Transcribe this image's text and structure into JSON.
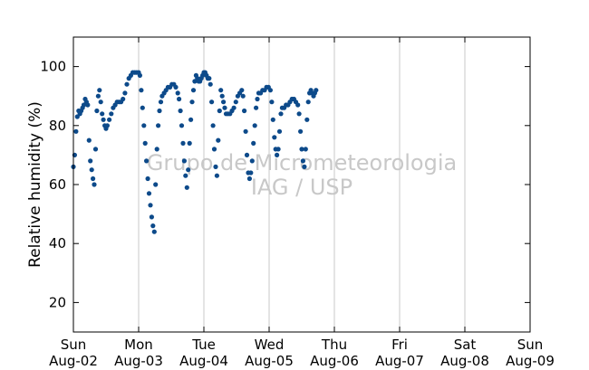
{
  "chart_data": {
    "type": "scatter",
    "title": "",
    "xlabel": "",
    "ylabel": "Relative humidity (%)",
    "watermark": [
      "Grupo de Micrometeorologia",
      "IAG / USP"
    ],
    "xlim": [
      "Aug-02",
      "Aug-09"
    ],
    "ylim": [
      10,
      110
    ],
    "yticks": [
      20,
      40,
      60,
      80,
      100
    ],
    "xticks": [
      {
        "day": "Sun",
        "date": "Aug-02"
      },
      {
        "day": "Mon",
        "date": "Aug-03"
      },
      {
        "day": "Tue",
        "date": "Aug-04"
      },
      {
        "day": "Wed",
        "date": "Aug-05"
      },
      {
        "day": "Thu",
        "date": "Aug-06"
      },
      {
        "day": "Fri",
        "date": "Aug-07"
      },
      {
        "day": "Sat",
        "date": "Aug-08"
      },
      {
        "day": "Sun",
        "date": "Aug-09"
      }
    ],
    "grid": "vertical",
    "marker_color": "#0d4a8a",
    "series": [
      {
        "x_unit": "days since Aug-02 00:00",
        "points": [
          [
            0.0,
            66
          ],
          [
            0.02,
            70
          ],
          [
            0.04,
            78
          ],
          [
            0.06,
            83
          ],
          [
            0.08,
            85
          ],
          [
            0.1,
            84
          ],
          [
            0.12,
            85
          ],
          [
            0.14,
            86
          ],
          [
            0.16,
            87
          ],
          [
            0.18,
            89
          ],
          [
            0.2,
            88
          ],
          [
            0.22,
            87
          ],
          [
            0.24,
            75
          ],
          [
            0.26,
            68
          ],
          [
            0.28,
            65
          ],
          [
            0.3,
            62
          ],
          [
            0.32,
            60
          ],
          [
            0.34,
            72
          ],
          [
            0.36,
            85
          ],
          [
            0.38,
            90
          ],
          [
            0.4,
            92
          ],
          [
            0.42,
            88
          ],
          [
            0.44,
            84
          ],
          [
            0.46,
            82
          ],
          [
            0.48,
            80
          ],
          [
            0.5,
            79
          ],
          [
            0.52,
            80
          ],
          [
            0.55,
            82
          ],
          [
            0.58,
            84
          ],
          [
            0.61,
            86
          ],
          [
            0.64,
            87
          ],
          [
            0.67,
            88
          ],
          [
            0.7,
            88
          ],
          [
            0.73,
            88
          ],
          [
            0.76,
            89
          ],
          [
            0.79,
            91
          ],
          [
            0.82,
            94
          ],
          [
            0.85,
            96
          ],
          [
            0.88,
            97
          ],
          [
            0.91,
            98
          ],
          [
            0.94,
            98
          ],
          [
            0.97,
            98
          ],
          [
            1.0,
            98
          ],
          [
            1.02,
            97
          ],
          [
            1.04,
            92
          ],
          [
            1.06,
            86
          ],
          [
            1.08,
            80
          ],
          [
            1.1,
            74
          ],
          [
            1.12,
            68
          ],
          [
            1.14,
            62
          ],
          [
            1.16,
            57
          ],
          [
            1.18,
            53
          ],
          [
            1.2,
            49
          ],
          [
            1.22,
            46
          ],
          [
            1.24,
            44
          ],
          [
            1.26,
            60
          ],
          [
            1.28,
            72
          ],
          [
            1.3,
            80
          ],
          [
            1.32,
            85
          ],
          [
            1.34,
            88
          ],
          [
            1.36,
            90
          ],
          [
            1.39,
            91
          ],
          [
            1.42,
            92
          ],
          [
            1.45,
            93
          ],
          [
            1.48,
            93
          ],
          [
            1.51,
            94
          ],
          [
            1.54,
            94
          ],
          [
            1.57,
            93
          ],
          [
            1.6,
            91
          ],
          [
            1.62,
            89
          ],
          [
            1.64,
            85
          ],
          [
            1.66,
            80
          ],
          [
            1.68,
            74
          ],
          [
            1.7,
            68
          ],
          [
            1.72,
            63
          ],
          [
            1.74,
            59
          ],
          [
            1.76,
            65
          ],
          [
            1.78,
            74
          ],
          [
            1.8,
            82
          ],
          [
            1.82,
            88
          ],
          [
            1.84,
            92
          ],
          [
            1.86,
            95
          ],
          [
            1.88,
            97
          ],
          [
            1.9,
            96
          ],
          [
            1.92,
            95
          ],
          [
            1.94,
            95
          ],
          [
            1.96,
            96
          ],
          [
            1.98,
            97
          ],
          [
            2.0,
            98
          ],
          [
            2.02,
            98
          ],
          [
            2.04,
            97
          ],
          [
            2.06,
            96
          ],
          [
            2.08,
            96
          ],
          [
            2.1,
            94
          ],
          [
            2.12,
            88
          ],
          [
            2.14,
            80
          ],
          [
            2.16,
            72
          ],
          [
            2.18,
            66
          ],
          [
            2.2,
            63
          ],
          [
            2.22,
            75
          ],
          [
            2.24,
            85
          ],
          [
            2.26,
            92
          ],
          [
            2.28,
            90
          ],
          [
            2.3,
            88
          ],
          [
            2.32,
            86
          ],
          [
            2.34,
            84
          ],
          [
            2.37,
            84
          ],
          [
            2.4,
            84
          ],
          [
            2.43,
            85
          ],
          [
            2.46,
            86
          ],
          [
            2.49,
            88
          ],
          [
            2.52,
            90
          ],
          [
            2.55,
            91
          ],
          [
            2.58,
            92
          ],
          [
            2.6,
            90
          ],
          [
            2.62,
            85
          ],
          [
            2.64,
            78
          ],
          [
            2.66,
            70
          ],
          [
            2.68,
            64
          ],
          [
            2.7,
            62
          ],
          [
            2.72,
            64
          ],
          [
            2.74,
            68
          ],
          [
            2.76,
            74
          ],
          [
            2.78,
            80
          ],
          [
            2.8,
            86
          ],
          [
            2.82,
            89
          ],
          [
            2.84,
            91
          ],
          [
            2.87,
            91
          ],
          [
            2.9,
            92
          ],
          [
            2.93,
            92
          ],
          [
            2.96,
            93
          ],
          [
            2.99,
            93
          ],
          [
            3.02,
            92
          ],
          [
            3.04,
            88
          ],
          [
            3.06,
            82
          ],
          [
            3.08,
            76
          ],
          [
            3.1,
            72
          ],
          [
            3.12,
            70
          ],
          [
            3.14,
            72
          ],
          [
            3.16,
            78
          ],
          [
            3.18,
            84
          ],
          [
            3.2,
            86
          ],
          [
            3.23,
            86
          ],
          [
            3.26,
            87
          ],
          [
            3.29,
            87
          ],
          [
            3.32,
            88
          ],
          [
            3.35,
            89
          ],
          [
            3.38,
            89
          ],
          [
            3.41,
            88
          ],
          [
            3.44,
            87
          ],
          [
            3.46,
            84
          ],
          [
            3.48,
            78
          ],
          [
            3.5,
            72
          ],
          [
            3.52,
            68
          ],
          [
            3.54,
            66
          ],
          [
            3.56,
            72
          ],
          [
            3.58,
            82
          ],
          [
            3.6,
            88
          ],
          [
            3.62,
            91
          ],
          [
            3.64,
            92
          ],
          [
            3.66,
            91
          ],
          [
            3.68,
            90
          ],
          [
            3.7,
            91
          ],
          [
            3.72,
            92
          ]
        ]
      }
    ]
  }
}
